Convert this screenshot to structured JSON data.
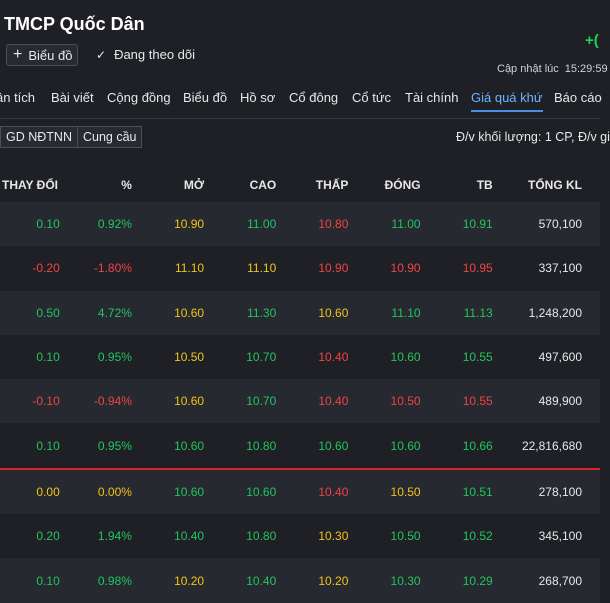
{
  "header": {
    "title": "TMCP Quốc Dân",
    "change_partial": "+(",
    "chart_button": "Biểu đồ",
    "follow_label": "Đang theo dõi",
    "updated_label": "Cập nhật lúc",
    "updated_time": "15:29:59"
  },
  "tabs": [
    "ân tích",
    "Bài viết",
    "Cộng đồng",
    "Biểu đồ",
    "Hồ sơ",
    "Cổ đông",
    "Cổ tức",
    "Tài chính",
    "Giá quá khứ",
    "Báo cáo"
  ],
  "active_tab": "Giá quá khứ",
  "subbar": {
    "btn1": "GD NĐTNN",
    "btn2": "Cung cầu",
    "unit_note": "Đ/v khối lượng: 1 CP, Đ/v gi"
  },
  "table": {
    "headers": [
      "THAY ĐỔI",
      "%",
      "MỞ",
      "CAO",
      "THẤP",
      "ĐÓNG",
      "TB",
      "TỔNG KL"
    ],
    "rows": [
      [
        "0.10",
        "0.92%",
        "10.90",
        "11.00",
        "10.80",
        "11.00",
        "10.91",
        "570,100"
      ],
      [
        "-0.20",
        "-1.80%",
        "11.10",
        "11.10",
        "10.90",
        "10.90",
        "10.95",
        "337,100"
      ],
      [
        "0.50",
        "4.72%",
        "10.60",
        "11.30",
        "10.60",
        "11.10",
        "11.13",
        "1,248,200"
      ],
      [
        "0.10",
        "0.95%",
        "10.50",
        "10.70",
        "10.40",
        "10.60",
        "10.55",
        "497,600"
      ],
      [
        "-0.10",
        "-0.94%",
        "10.60",
        "10.70",
        "10.40",
        "10.50",
        "10.55",
        "489,900"
      ],
      [
        "0.10",
        "0.95%",
        "10.60",
        "10.80",
        "10.60",
        "10.60",
        "10.66",
        "22,816,680"
      ],
      [
        "0.00",
        "0.00%",
        "10.60",
        "10.60",
        "10.40",
        "10.50",
        "10.51",
        "278,100"
      ],
      [
        "0.20",
        "1.94%",
        "10.40",
        "10.80",
        "10.30",
        "10.50",
        "10.52",
        "345,100"
      ],
      [
        "0.10",
        "0.98%",
        "10.20",
        "10.40",
        "10.20",
        "10.30",
        "10.29",
        "268,700"
      ]
    ],
    "colors": [
      [
        "g",
        "g",
        "y",
        "g",
        "r",
        "g",
        "g",
        "w"
      ],
      [
        "r",
        "r",
        "y",
        "y",
        "r",
        "r",
        "r",
        "w"
      ],
      [
        "g",
        "g",
        "y",
        "g",
        "y",
        "g",
        "g",
        "w"
      ],
      [
        "g",
        "g",
        "y",
        "g",
        "r",
        "g",
        "g",
        "w"
      ],
      [
        "r",
        "r",
        "y",
        "g",
        "r",
        "r",
        "r",
        "w"
      ],
      [
        "g",
        "g",
        "g",
        "g",
        "g",
        "g",
        "g",
        "w"
      ],
      [
        "y",
        "y",
        "g",
        "g",
        "r",
        "y",
        "g",
        "w"
      ],
      [
        "g",
        "g",
        "g",
        "g",
        "y",
        "g",
        "g",
        "w"
      ],
      [
        "g",
        "g",
        "y",
        "g",
        "y",
        "g",
        "g",
        "w"
      ]
    ],
    "separator_after_row": 5
  },
  "colors": {
    "up": "#22c55e",
    "down": "#ef4444",
    "ref": "#f0c419",
    "accent": "#4a90e2",
    "separator": "#d9232e"
  }
}
